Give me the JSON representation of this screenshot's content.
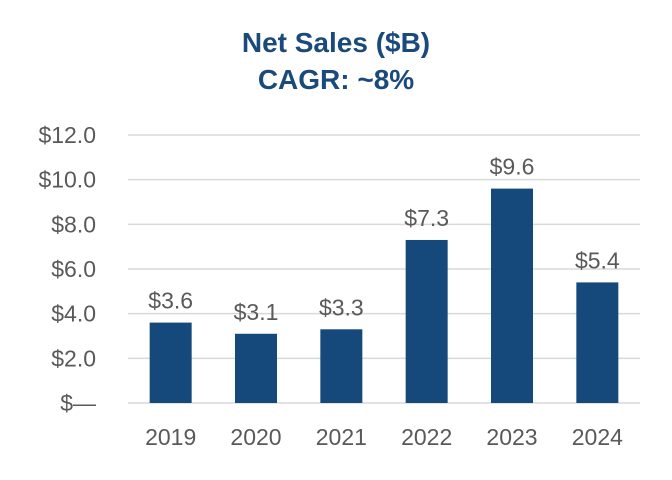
{
  "chart_data": {
    "type": "bar",
    "title": "Net Sales ($B)",
    "subtitle": "CAGR: ~8%",
    "categories": [
      "2019",
      "2020",
      "2021",
      "2022",
      "2023",
      "2024"
    ],
    "values": [
      3.6,
      3.1,
      3.3,
      7.3,
      9.6,
      5.4
    ],
    "data_labels": [
      "$3.6",
      "$3.1",
      "$3.3",
      "$7.3",
      "$9.6",
      "$5.4"
    ],
    "y_ticks": [
      0,
      2,
      4,
      6,
      8,
      10,
      12
    ],
    "y_tick_labels": [
      "$—",
      "$2.0",
      "$4.0",
      "$6.0",
      "$8.0",
      "$10.0",
      "$12.0"
    ],
    "ylim": [
      0,
      12
    ],
    "xlabel": "",
    "ylabel": "",
    "grid": true,
    "legend": "none",
    "colors": {
      "bar": "#16497b",
      "title": "#1a4a7c",
      "text": "#595959",
      "grid": "#d9d9d9"
    }
  }
}
